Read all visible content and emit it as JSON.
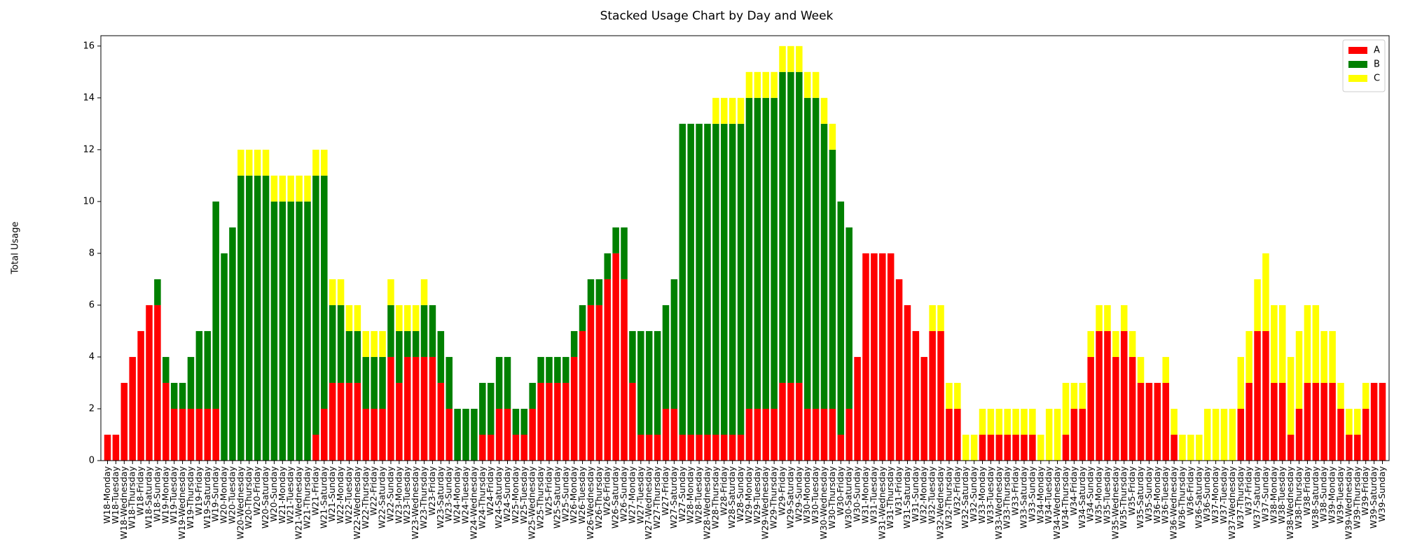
{
  "chart_data": {
    "type": "stacked_bar",
    "title": "Stacked Usage Chart by Day and Week",
    "y_label": "Total Usage",
    "categories": [
      "W18-Monday",
      "W18-Tuesday",
      "W18-Wednesday",
      "W18-Thursday",
      "W18-Friday",
      "W18-Saturday",
      "W18-Sunday",
      "W19-Monday",
      "W19-Tuesday",
      "W19-Wednesday",
      "W19-Thursday",
      "W19-Friday",
      "W19-Saturday",
      "W19-Sunday",
      "W20-Monday",
      "W20-Tuesday",
      "W20-Wednesday",
      "W20-Thursday",
      "W20-Friday",
      "W20-Saturday",
      "W20-Sunday",
      "W21-Monday",
      "W21-Tuesday",
      "W21-Wednesday",
      "W21-Thursday",
      "W21-Friday",
      "W21-Saturday",
      "W21-Sunday",
      "W22-Monday",
      "W22-Tuesday",
      "W22-Wednesday",
      "W22-Thursday",
      "W22-Friday",
      "W22-Saturday",
      "W22-Sunday",
      "W23-Monday",
      "W23-Tuesday",
      "W23-Wednesday",
      "W23-Thursday",
      "W23-Friday",
      "W23-Saturday",
      "W23-Sunday",
      "W24-Monday",
      "W24-Tuesday",
      "W24-Wednesday",
      "W24-Thursday",
      "W24-Friday",
      "W24-Saturday",
      "W24-Sunday",
      "W25-Monday",
      "W25-Tuesday",
      "W25-Wednesday",
      "W25-Thursday",
      "W25-Friday",
      "W25-Saturday",
      "W25-Sunday",
      "W26-Monday",
      "W26-Tuesday",
      "W26-Wednesday",
      "W26-Thursday",
      "W26-Friday",
      "W26-Saturday",
      "W26-Sunday",
      "W27-Monday",
      "W27-Tuesday",
      "W27-Wednesday",
      "W27-Thursday",
      "W27-Friday",
      "W27-Saturday",
      "W27-Sunday",
      "W28-Monday",
      "W28-Tuesday",
      "W28-Wednesday",
      "W28-Thursday",
      "W28-Friday",
      "W28-Saturday",
      "W28-Sunday",
      "W29-Monday",
      "W29-Tuesday",
      "W29-Wednesday",
      "W29-Thursday",
      "W29-Friday",
      "W29-Saturday",
      "W29-Sunday",
      "W30-Monday",
      "W30-Tuesday",
      "W30-Wednesday",
      "W30-Thursday",
      "W30-Friday",
      "W30-Saturday",
      "W30-Sunday",
      "W31-Monday",
      "W31-Tuesday",
      "W31-Wednesday",
      "W31-Thursday",
      "W31-Friday",
      "W31-Saturday",
      "W31-Sunday",
      "W32-Monday",
      "W32-Tuesday",
      "W32-Wednesday",
      "W32-Thursday",
      "W32-Friday",
      "W32-Saturday",
      "W32-Sunday",
      "W33-Monday",
      "W33-Tuesday",
      "W33-Wednesday",
      "W33-Thursday",
      "W33-Friday",
      "W33-Saturday",
      "W33-Sunday",
      "W34-Monday",
      "W34-Tuesday",
      "W34-Wednesday",
      "W34-Thursday",
      "W34-Friday",
      "W34-Saturday",
      "W34-Sunday",
      "W35-Monday",
      "W35-Tuesday",
      "W35-Wednesday",
      "W35-Thursday",
      "W35-Friday",
      "W35-Saturday",
      "W35-Sunday",
      "W36-Monday",
      "W36-Tuesday",
      "W36-Wednesday",
      "W36-Thursday",
      "W36-Friday",
      "W36-Saturday",
      "W36-Sunday",
      "W37-Monday",
      "W37-Tuesday",
      "W37-Wednesday",
      "W37-Thursday",
      "W37-Friday",
      "W37-Saturday",
      "W37-Sunday",
      "W38-Monday",
      "W38-Tuesday",
      "W38-Wednesday",
      "W38-Thursday",
      "W38-Friday",
      "W38-Saturday",
      "W38-Sunday",
      "W39-Monday",
      "W39-Tuesday",
      "W39-Wednesday",
      "W39-Thursday",
      "W39-Friday",
      "W39-Saturday",
      "W39-Sunday"
    ],
    "series": [
      {
        "name": "A",
        "color": "#ff0000",
        "values": [
          1,
          1,
          3,
          4,
          5,
          6,
          6,
          3,
          2,
          2,
          2,
          2,
          2,
          2,
          0,
          0,
          0,
          0,
          0,
          0,
          0,
          0,
          0,
          0,
          0,
          1,
          2,
          3,
          3,
          3,
          3,
          2,
          2,
          2,
          4,
          3,
          4,
          4,
          4,
          4,
          3,
          2,
          0,
          0,
          0,
          1,
          1,
          2,
          2,
          1,
          1,
          2,
          3,
          3,
          3,
          3,
          4,
          5,
          6,
          6,
          7,
          8,
          7,
          3,
          1,
          1,
          1,
          2,
          2,
          1,
          1,
          1,
          1,
          1,
          1,
          1,
          1,
          2,
          2,
          2,
          2,
          3,
          3,
          3,
          2,
          2,
          2,
          2,
          1,
          2,
          4,
          8,
          8,
          8,
          8,
          7,
          6,
          5,
          4,
          5,
          5,
          2,
          2,
          0,
          0,
          1,
          1,
          1,
          1,
          1,
          1,
          1,
          0,
          0,
          0,
          1,
          2,
          2,
          4,
          5,
          5,
          4,
          5,
          4,
          3,
          3,
          3,
          3,
          1,
          0,
          0,
          0,
          0,
          0,
          0,
          0,
          2,
          3,
          5,
          5,
          3,
          3,
          1,
          2,
          3,
          3,
          3,
          3,
          2,
          1,
          1,
          2,
          3,
          3
        ]
      },
      {
        "name": "B",
        "color": "#008000",
        "values": [
          0,
          0,
          0,
          0,
          0,
          0,
          1,
          1,
          1,
          1,
          2,
          3,
          3,
          8,
          8,
          9,
          11,
          11,
          11,
          11,
          10,
          10,
          10,
          10,
          10,
          10,
          9,
          3,
          3,
          2,
          2,
          2,
          2,
          2,
          2,
          2,
          1,
          1,
          2,
          2,
          2,
          2,
          2,
          2,
          2,
          2,
          2,
          2,
          2,
          1,
          1,
          1,
          1,
          1,
          1,
          1,
          1,
          1,
          1,
          1,
          1,
          1,
          2,
          2,
          4,
          4,
          4,
          4,
          5,
          12,
          12,
          12,
          12,
          12,
          12,
          12,
          12,
          12,
          12,
          12,
          12,
          12,
          12,
          12,
          12,
          12,
          11,
          10,
          9,
          7,
          0,
          0,
          0,
          0,
          0,
          0,
          0,
          0,
          0,
          0,
          0,
          0,
          0,
          0,
          0,
          0,
          0,
          0,
          0,
          0,
          0,
          0,
          0,
          0,
          0,
          0,
          0,
          0,
          0,
          0,
          0,
          0,
          0,
          0,
          0,
          0,
          0,
          0,
          0,
          0,
          0,
          0,
          0,
          0,
          0,
          0,
          0,
          0,
          0,
          0,
          0,
          0,
          0,
          0,
          0,
          0,
          0,
          0,
          0,
          0,
          0,
          0,
          0,
          0
        ]
      },
      {
        "name": "C",
        "color": "#ffff00",
        "values": [
          0,
          0,
          0,
          0,
          0,
          0,
          0,
          0,
          0,
          0,
          0,
          0,
          0,
          0,
          0,
          0,
          1,
          1,
          1,
          1,
          1,
          1,
          1,
          1,
          1,
          1,
          1,
          1,
          1,
          1,
          1,
          1,
          1,
          1,
          1,
          1,
          1,
          1,
          1,
          0,
          0,
          0,
          0,
          0,
          0,
          0,
          0,
          0,
          0,
          0,
          0,
          0,
          0,
          0,
          0,
          0,
          0,
          0,
          0,
          0,
          0,
          0,
          0,
          0,
          0,
          0,
          0,
          0,
          0,
          0,
          0,
          0,
          0,
          1,
          1,
          1,
          1,
          1,
          1,
          1,
          1,
          1,
          1,
          1,
          1,
          1,
          1,
          1,
          0,
          0,
          0,
          0,
          0,
          0,
          0,
          0,
          0,
          0,
          0,
          1,
          1,
          1,
          1,
          1,
          1,
          1,
          1,
          1,
          1,
          1,
          1,
          1,
          1,
          2,
          2,
          2,
          1,
          1,
          1,
          1,
          1,
          1,
          1,
          1,
          1,
          0,
          0,
          1,
          1,
          1,
          1,
          1,
          2,
          2,
          2,
          2,
          2,
          2,
          2,
          3,
          3,
          3,
          3,
          3,
          3,
          3,
          2,
          2,
          1,
          1,
          1,
          1,
          0,
          0
        ]
      }
    ],
    "ylim": [
      0,
      16.4
    ],
    "yticks": [
      0,
      2,
      4,
      6,
      8,
      10,
      12,
      14,
      16
    ],
    "legend": "upper right"
  }
}
